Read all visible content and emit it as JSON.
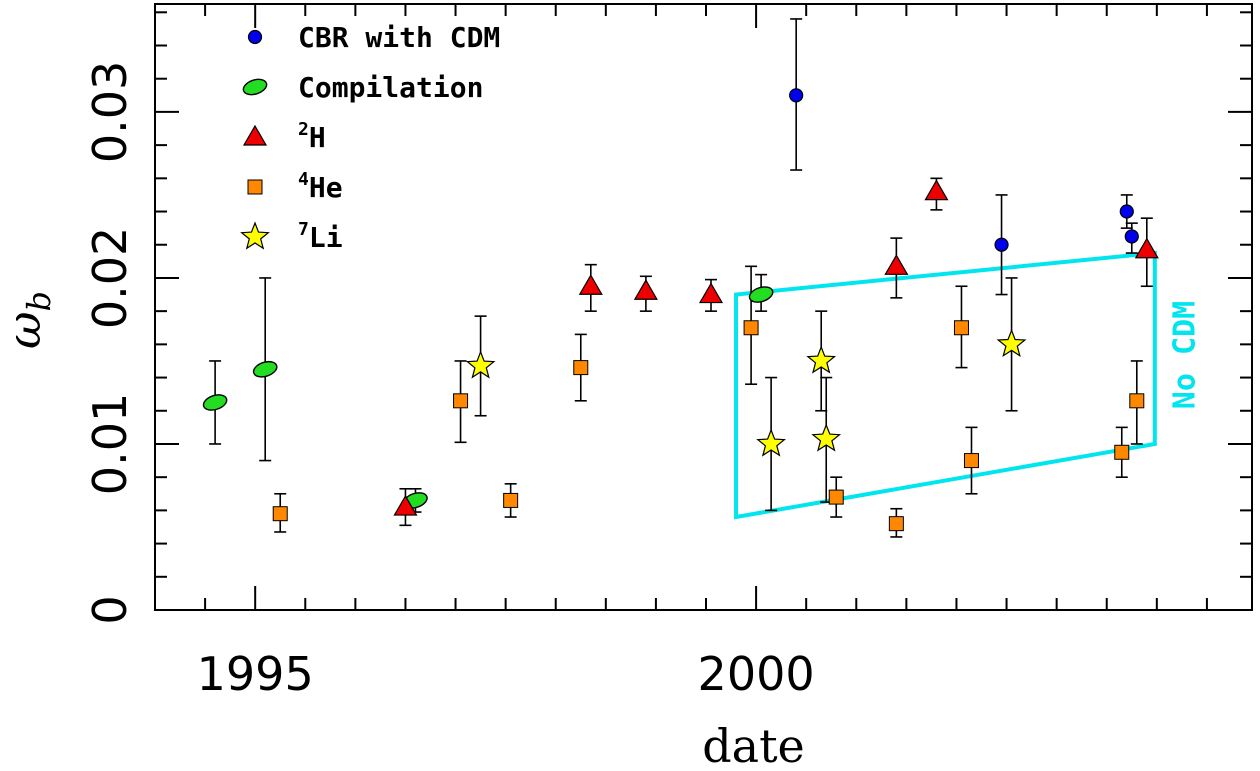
{
  "chart_data": {
    "type": "scatter",
    "xlabel": "date",
    "ylabel": "ω_b",
    "ylabel_main": "ω",
    "ylabel_sub": "b",
    "xlim": [
      1994,
      2004.95
    ],
    "ylim": [
      0,
      0.0365
    ],
    "x_ticks": [
      {
        "value": 1995,
        "label": "1995"
      },
      {
        "value": 2000,
        "label": "2000"
      }
    ],
    "y_ticks": [
      {
        "value": 0,
        "label": "0"
      },
      {
        "value": 0.01,
        "label": "0.01"
      },
      {
        "value": 0.02,
        "label": "0.02"
      },
      {
        "value": 0.03,
        "label": "0.03"
      }
    ],
    "x_minor_step": 0.5,
    "y_minor_step": 0.002,
    "legend_position": "top-left",
    "colors": {
      "cbr": "#0000ee",
      "compilation": "#22dd22",
      "deuterium": "#ee0000",
      "helium": "#ff8800",
      "lithium": "#ffff00",
      "nocdm": "#00e5ee"
    },
    "series": [
      {
        "key": "cbr",
        "marker": "circle",
        "label": "CBR with CDM",
        "label_prefix": "",
        "label_sup": "",
        "points": [
          {
            "x": 2000.4,
            "y": 0.031,
            "low": 0.0265,
            "high": 0.0356
          },
          {
            "x": 2002.45,
            "y": 0.022,
            "low": 0.019,
            "high": 0.025
          },
          {
            "x": 2003.7,
            "y": 0.024,
            "low": 0.023,
            "high": 0.025
          },
          {
            "x": 2003.75,
            "y": 0.0225,
            "low": 0.0215,
            "high": 0.0233
          }
        ]
      },
      {
        "key": "compilation",
        "marker": "ellipse",
        "label": "Compilation",
        "label_prefix": "",
        "label_sup": "",
        "points": [
          {
            "x": 1994.6,
            "y": 0.0125,
            "low": 0.01,
            "high": 0.015
          },
          {
            "x": 1995.1,
            "y": 0.0145,
            "low": 0.009,
            "high": 0.02
          },
          {
            "x": 1996.6,
            "y": 0.0066,
            "low": 0.0059,
            "high": 0.0073
          },
          {
            "x": 2000.05,
            "y": 0.019,
            "low": 0.018,
            "high": 0.0202
          }
        ]
      },
      {
        "key": "deuterium",
        "marker": "triangle",
        "label": "H",
        "label_prefix": "",
        "label_sup": "2",
        "points": [
          {
            "x": 1996.5,
            "y": 0.0062,
            "low": 0.0051,
            "high": 0.0073
          },
          {
            "x": 1998.35,
            "y": 0.0195,
            "low": 0.018,
            "high": 0.0208
          },
          {
            "x": 1998.9,
            "y": 0.0192,
            "low": 0.018,
            "high": 0.0201
          },
          {
            "x": 1999.55,
            "y": 0.019,
            "low": 0.018,
            "high": 0.0199
          },
          {
            "x": 2001.4,
            "y": 0.0207,
            "low": 0.0188,
            "high": 0.0224
          },
          {
            "x": 2001.8,
            "y": 0.0252,
            "low": 0.0241,
            "high": 0.026
          },
          {
            "x": 2003.9,
            "y": 0.0217,
            "low": 0.0195,
            "high": 0.0236
          }
        ]
      },
      {
        "key": "helium",
        "marker": "square",
        "label": "He",
        "label_prefix": "",
        "label_sup": "4",
        "points": [
          {
            "x": 1995.25,
            "y": 0.0058,
            "low": 0.0047,
            "high": 0.007
          },
          {
            "x": 1997.05,
            "y": 0.0126,
            "low": 0.0101,
            "high": 0.015
          },
          {
            "x": 1997.55,
            "y": 0.0066,
            "low": 0.0056,
            "high": 0.0076
          },
          {
            "x": 1998.25,
            "y": 0.0146,
            "low": 0.0126,
            "high": 0.0166
          },
          {
            "x": 1999.95,
            "y": 0.017,
            "low": 0.0136,
            "high": 0.0207
          },
          {
            "x": 2000.8,
            "y": 0.0068,
            "low": 0.0056,
            "high": 0.008
          },
          {
            "x": 2001.4,
            "y": 0.0052,
            "low": 0.0044,
            "high": 0.0061
          },
          {
            "x": 2002.05,
            "y": 0.017,
            "low": 0.0146,
            "high": 0.0195
          },
          {
            "x": 2002.15,
            "y": 0.009,
            "low": 0.007,
            "high": 0.011
          },
          {
            "x": 2003.65,
            "y": 0.0095,
            "low": 0.008,
            "high": 0.011
          },
          {
            "x": 2003.8,
            "y": 0.0126,
            "low": 0.01,
            "high": 0.015
          }
        ]
      },
      {
        "key": "lithium",
        "marker": "star",
        "label": "Li",
        "label_prefix": "",
        "label_sup": "7",
        "points": [
          {
            "x": 1997.25,
            "y": 0.0147,
            "low": 0.0117,
            "high": 0.0177
          },
          {
            "x": 2000.15,
            "y": 0.01,
            "low": 0.006,
            "high": 0.014
          },
          {
            "x": 2000.65,
            "y": 0.015,
            "low": 0.012,
            "high": 0.018
          },
          {
            "x": 2000.7,
            "y": 0.0103,
            "low": 0.0065,
            "high": 0.014
          },
          {
            "x": 2002.55,
            "y": 0.016,
            "low": 0.012,
            "high": 0.02
          }
        ]
      }
    ],
    "nocdm_region": {
      "label": "No CDM",
      "vertices": [
        {
          "x": 1999.8,
          "y": 0.0056
        },
        {
          "x": 1999.8,
          "y": 0.019
        },
        {
          "x": 2003.98,
          "y": 0.0215
        },
        {
          "x": 2003.98,
          "y": 0.01
        }
      ]
    }
  }
}
